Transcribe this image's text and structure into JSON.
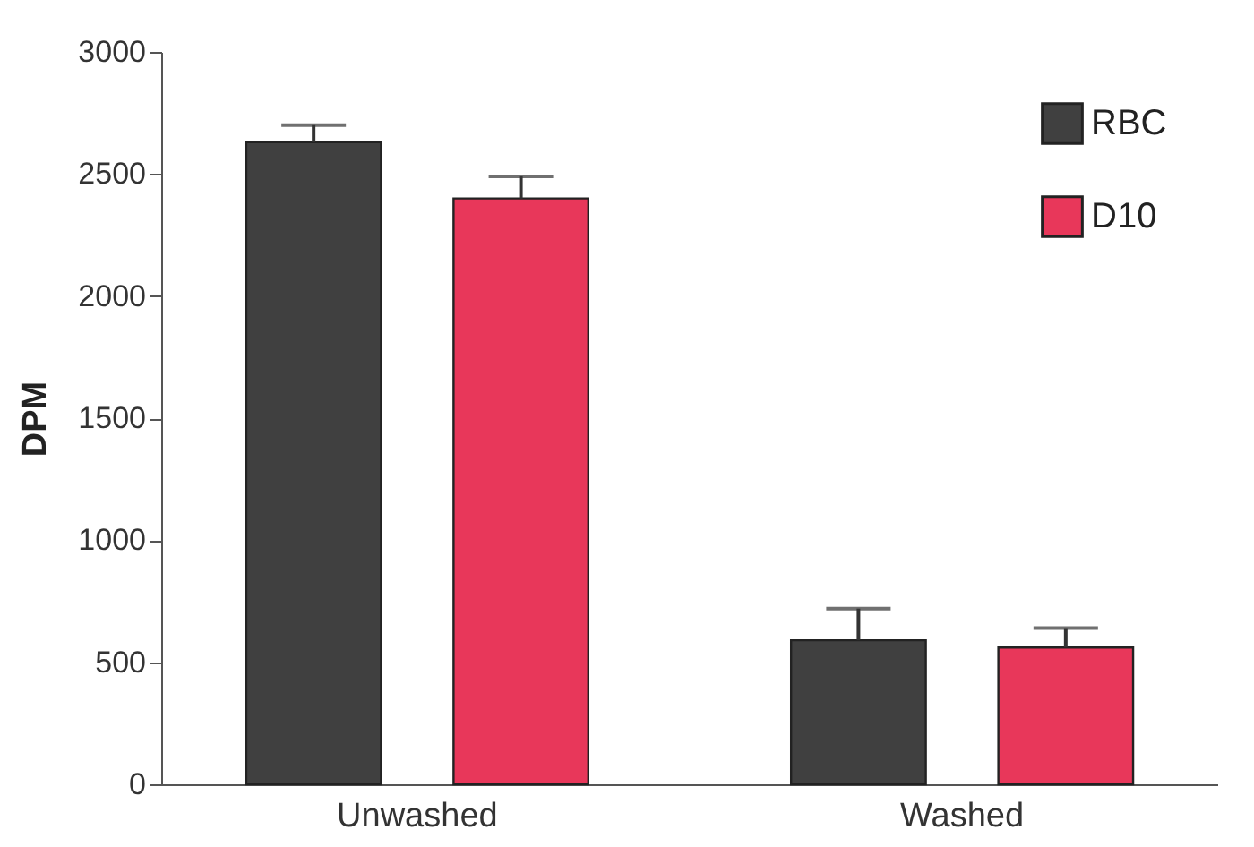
{
  "chart_data": {
    "type": "bar",
    "ylabel": "DPM",
    "categories": [
      "Unwashed",
      "Washed"
    ],
    "series": [
      {
        "name": "RBC",
        "color": "#404040",
        "values": [
          2630,
          590
        ],
        "errors": [
          [
            2630,
            2700
          ],
          [
            590,
            720
          ]
        ]
      },
      {
        "name": "D10",
        "color": "#e8375a",
        "values": [
          2400,
          560
        ],
        "errors": [
          [
            2400,
            2490
          ],
          [
            560,
            640
          ]
        ]
      }
    ],
    "ylim": [
      0,
      3000
    ],
    "yticks": [
      0,
      500,
      1000,
      1500,
      2000,
      2500,
      3000
    ],
    "grid": false,
    "legend": "top right"
  }
}
